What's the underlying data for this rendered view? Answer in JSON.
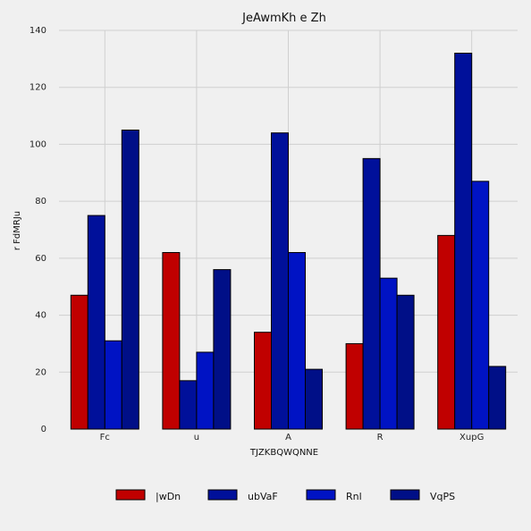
{
  "chart_data": {
    "type": "bar",
    "title": "JeAwmKh e Zh",
    "xlabel": "TJZKBQWQNNE",
    "ylabel": "r FdMRJu",
    "ylim": [
      0,
      140
    ],
    "yticks": [
      0,
      20,
      40,
      60,
      80,
      100,
      120,
      140
    ],
    "grid": true,
    "legend_position": "bottom",
    "categories": [
      "Fc",
      "u",
      "A",
      "R",
      "XupG"
    ],
    "series": [
      {
        "name": "|wDn",
        "color": "#c00000",
        "values": [
          47,
          62,
          34,
          30,
          68
        ]
      },
      {
        "name": "ubVaF",
        "color": "#00109a",
        "values": [
          75,
          17,
          104,
          95,
          132
        ]
      },
      {
        "name": "Rnl",
        "color": "#0013c4",
        "values": [
          31,
          27,
          62,
          53,
          87
        ]
      },
      {
        "name": "VqPS",
        "color": "#000f87",
        "values": [
          105,
          56,
          21,
          47,
          22
        ]
      }
    ]
  }
}
